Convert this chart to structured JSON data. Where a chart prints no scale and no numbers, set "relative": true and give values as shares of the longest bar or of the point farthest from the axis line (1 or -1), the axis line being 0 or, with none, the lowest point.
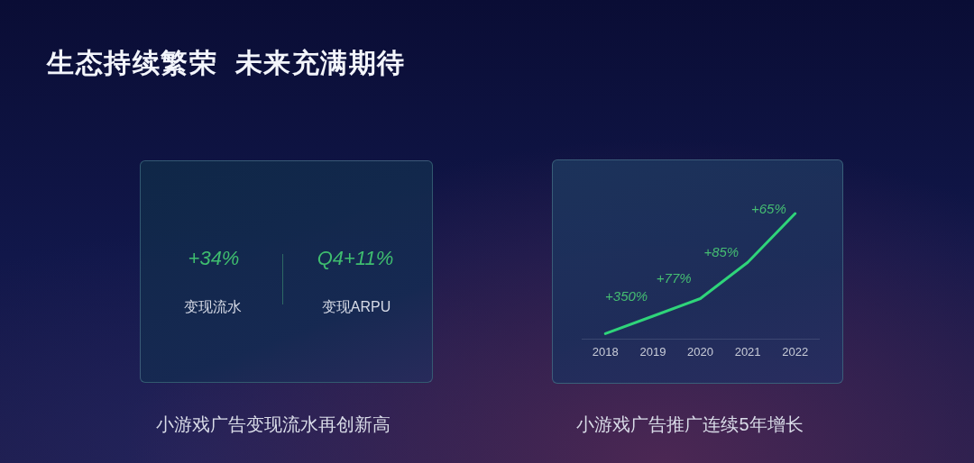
{
  "chart_data": [
    {
      "type": "other",
      "title": "生态持续繁荣  未来充满期待",
      "annotations": [
        "+34%",
        "变现流水",
        "Q4+11%",
        "变现ARPU",
        "小游戏广告变现流水再创新高"
      ]
    },
    {
      "type": "line",
      "title": "小游戏广告推广连续5年增长",
      "categories": [
        "2018",
        "2019",
        "2020",
        "2021",
        "2022"
      ],
      "relative": true,
      "values": [
        0.04,
        0.18,
        0.32,
        0.61,
        1
      ],
      "color": "#2fd47a",
      "annotations": [
        {
          "text": "+350%",
          "x": "2019",
          "y": 0.18
        },
        {
          "text": "+77%",
          "x": "2020",
          "y": 0.32
        },
        {
          "text": "+85%",
          "x": "2021",
          "y": 0.61
        },
        {
          "text": "+65%",
          "x": "2022",
          "y": 1
        }
      ]
    }
  ]
}
